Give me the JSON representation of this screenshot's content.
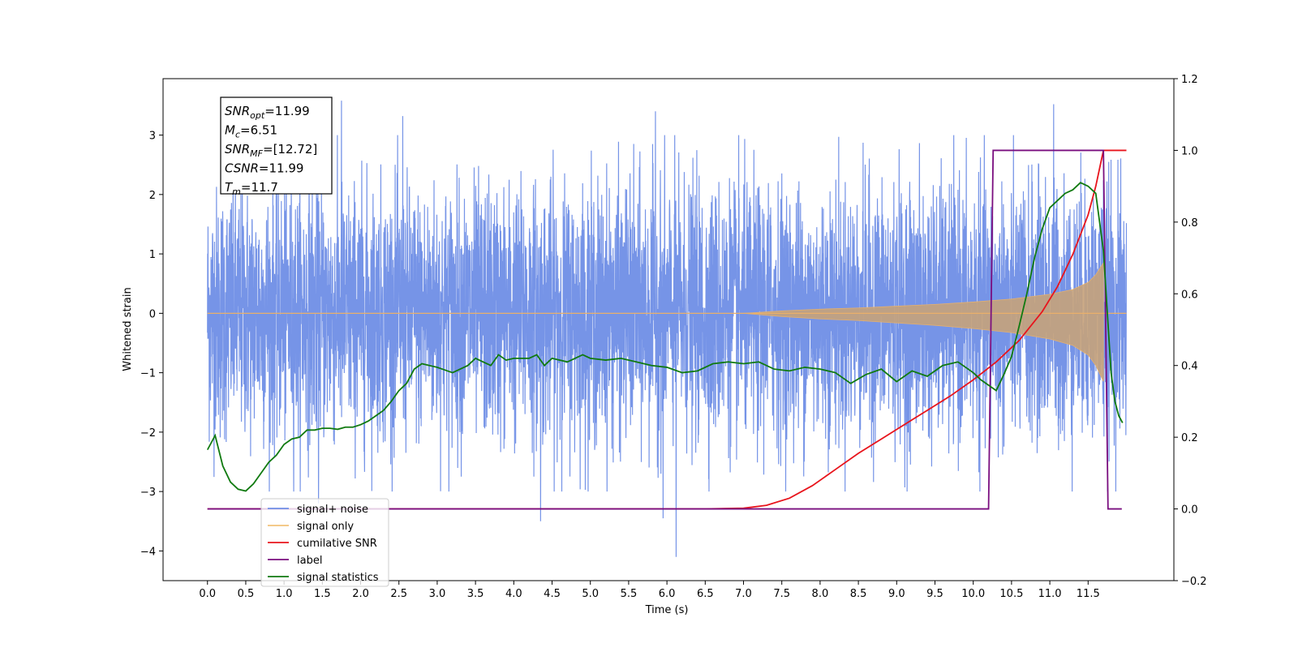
{
  "chart_data": {
    "type": "line",
    "xlabel": "Time (s)",
    "ylabel": "Whitened strain",
    "xlim": [
      -0.58,
      12.62
    ],
    "ylim_left": [
      -4.5,
      3.95
    ],
    "ylim_right": [
      -0.2,
      1.2
    ],
    "x_ticks": [
      0.0,
      0.5,
      1.0,
      1.5,
      2.0,
      2.5,
      3.0,
      3.5,
      4.0,
      4.5,
      5.0,
      5.5,
      6.0,
      6.5,
      7.0,
      7.5,
      8.0,
      8.5,
      9.0,
      9.5,
      10.0,
      10.5,
      11.0,
      11.5
    ],
    "x_tick_labels": [
      "0.0",
      "0.5",
      "1.0",
      "1.5",
      "2.0",
      "2.5",
      "3.0",
      "3.5",
      "4.0",
      "4.5",
      "5.0",
      "5.5",
      "6.0",
      "6.5",
      "7.0",
      "7.5",
      "8.0",
      "8.5",
      "9.0",
      "9.5",
      "10.0",
      "10.5",
      "11.0",
      "11.5"
    ],
    "y_left_ticks": [
      3,
      2,
      1,
      0,
      -1,
      -2,
      -3,
      -4
    ],
    "y_left_tick_labels": [
      "3",
      "2",
      "1",
      "0",
      "−1",
      "−2",
      "−3",
      "−4"
    ],
    "y_right_ticks": [
      1.2,
      1.0,
      0.8,
      0.6,
      0.4,
      0.2,
      0.0,
      -0.2
    ],
    "y_right_tick_labels": [
      "1.2",
      "1.0",
      "0.8",
      "0.6",
      "0.4",
      "0.2",
      "0.0",
      "−0.2"
    ],
    "grid": false,
    "legend_position": "lower-left",
    "annotation_box": [
      {
        "base": "SNR",
        "sub": "opt",
        "value": "=11.99"
      },
      {
        "base": "M",
        "sub": "c",
        "value": "=6.51"
      },
      {
        "base": "SNR",
        "sub": "MF",
        "value": "=[12.72]"
      },
      {
        "base": "CSNR",
        "sub": "",
        "value": "=11.99"
      },
      {
        "base": "T",
        "sub": "m",
        "value": "=11.7"
      }
    ],
    "series": [
      {
        "name": "signal+ noise",
        "axis": "left",
        "color": "#6f8ee6",
        "approximate": "gaussian noise, amplitude ~1.3 std, spanning 0.0 to 12.0 s",
        "x_range": [
          0.0,
          12.0
        ],
        "peaks": [
          [
            1.75,
            3.58
          ],
          [
            2.55,
            3.32
          ],
          [
            5.85,
            3.4
          ],
          [
            11.05,
            3.52
          ],
          [
            6.12,
            -4.1
          ],
          [
            4.35,
            -3.5
          ],
          [
            5.95,
            -3.45
          ],
          [
            1.45,
            -3.2
          ]
        ]
      },
      {
        "name": "signal only",
        "axis": "left",
        "color": "#c8a070",
        "approximate": "chirp envelope, grows from ~0 at 7.0 s to ~0.85 at 11.7 s, ends at 11.7 s",
        "x": [
          0.0,
          7.0,
          7.5,
          8.0,
          8.5,
          9.0,
          9.5,
          10.0,
          10.5,
          11.0,
          11.3,
          11.5,
          11.6,
          11.7
        ],
        "envelope": [
          0.0,
          0.0,
          0.04,
          0.07,
          0.09,
          0.12,
          0.15,
          0.19,
          0.24,
          0.32,
          0.4,
          0.52,
          0.65,
          0.85
        ]
      },
      {
        "name": "cumilative SNR",
        "axis": "right",
        "color": "#e8141c",
        "x": [
          0.0,
          6.5,
          7.0,
          7.3,
          7.6,
          7.9,
          8.2,
          8.5,
          8.8,
          9.1,
          9.4,
          9.7,
          10.0,
          10.3,
          10.6,
          10.9,
          11.1,
          11.3,
          11.5,
          11.6,
          11.7,
          12.0
        ],
        "y": [
          0.0,
          0.0,
          0.002,
          0.01,
          0.03,
          0.065,
          0.11,
          0.155,
          0.195,
          0.235,
          0.275,
          0.315,
          0.36,
          0.41,
          0.47,
          0.55,
          0.62,
          0.71,
          0.82,
          0.9,
          1.0,
          1.0
        ]
      },
      {
        "name": "label",
        "axis": "right",
        "color": "#7a0e7f",
        "x": [
          0.0,
          10.2,
          10.26,
          11.7,
          11.76,
          11.94
        ],
        "y": [
          0.0,
          0.0,
          1.0,
          1.0,
          0.0,
          0.0
        ]
      },
      {
        "name": "signal statistics",
        "axis": "right",
        "color": "#107a10",
        "x": [
          0.0,
          0.1,
          0.2,
          0.3,
          0.4,
          0.5,
          0.6,
          0.7,
          0.8,
          0.9,
          1.0,
          1.1,
          1.2,
          1.3,
          1.4,
          1.5,
          1.6,
          1.7,
          1.8,
          1.9,
          2.0,
          2.1,
          2.2,
          2.3,
          2.4,
          2.5,
          2.6,
          2.7,
          2.8,
          2.9,
          3.0,
          3.2,
          3.4,
          3.5,
          3.6,
          3.7,
          3.8,
          3.9,
          4.0,
          4.2,
          4.3,
          4.4,
          4.5,
          4.7,
          4.9,
          5.0,
          5.2,
          5.4,
          5.6,
          5.8,
          6.0,
          6.2,
          6.4,
          6.6,
          6.8,
          7.0,
          7.2,
          7.4,
          7.6,
          7.8,
          8.0,
          8.2,
          8.4,
          8.6,
          8.8,
          9.0,
          9.2,
          9.4,
          9.6,
          9.8,
          10.0,
          10.1,
          10.2,
          10.3,
          10.4,
          10.5,
          10.6,
          10.7,
          10.8,
          10.9,
          11.0,
          11.1,
          11.2,
          11.3,
          11.4,
          11.5,
          11.6,
          11.7,
          11.75,
          11.8,
          11.85,
          11.9,
          11.95
        ],
        "y": [
          0.165,
          0.205,
          0.12,
          0.075,
          0.055,
          0.05,
          0.07,
          0.1,
          0.13,
          0.15,
          0.18,
          0.195,
          0.2,
          0.22,
          0.22,
          0.225,
          0.225,
          0.222,
          0.228,
          0.228,
          0.235,
          0.245,
          0.26,
          0.275,
          0.3,
          0.33,
          0.35,
          0.39,
          0.405,
          0.4,
          0.395,
          0.38,
          0.4,
          0.42,
          0.41,
          0.4,
          0.43,
          0.415,
          0.42,
          0.42,
          0.43,
          0.4,
          0.42,
          0.41,
          0.43,
          0.42,
          0.415,
          0.42,
          0.41,
          0.4,
          0.395,
          0.38,
          0.385,
          0.405,
          0.41,
          0.405,
          0.41,
          0.39,
          0.385,
          0.395,
          0.39,
          0.38,
          0.35,
          0.375,
          0.39,
          0.355,
          0.385,
          0.37,
          0.4,
          0.41,
          0.38,
          0.36,
          0.345,
          0.33,
          0.375,
          0.425,
          0.51,
          0.6,
          0.7,
          0.78,
          0.84,
          0.86,
          0.88,
          0.89,
          0.91,
          0.9,
          0.88,
          0.72,
          0.55,
          0.38,
          0.3,
          0.26,
          0.24
        ]
      }
    ]
  }
}
